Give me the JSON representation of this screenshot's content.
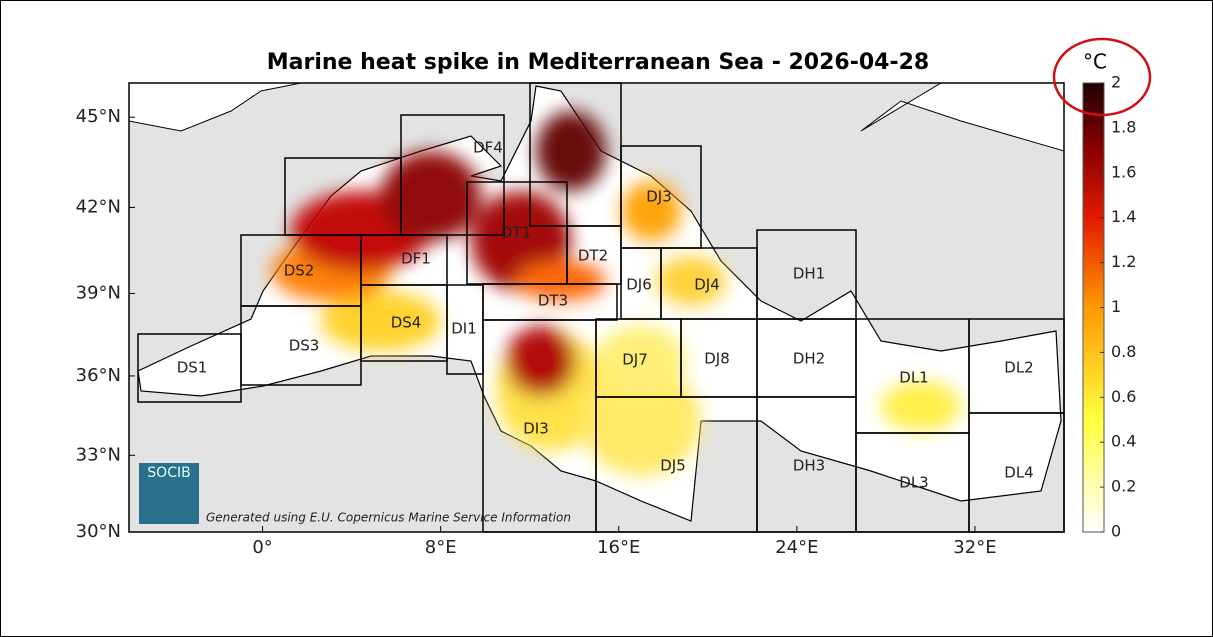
{
  "title": "Marine heat spike in Mediterranean Sea - 2026-04-28",
  "lat_ticks": [
    {
      "value": 45,
      "label": "45°N"
    },
    {
      "value": 42,
      "label": "42°N"
    },
    {
      "value": 39,
      "label": "39°N"
    },
    {
      "value": 36,
      "label": "36°N"
    },
    {
      "value": 33,
      "label": "33°N"
    },
    {
      "value": 30,
      "label": "30°N"
    }
  ],
  "lon_ticks": [
    {
      "value": 0,
      "label": "0°"
    },
    {
      "value": 8,
      "label": "8°E"
    },
    {
      "value": 16,
      "label": "16°E"
    },
    {
      "value": 24,
      "label": "24°E"
    },
    {
      "value": 32,
      "label": "32°E"
    }
  ],
  "regions": [
    "DS1",
    "DS3",
    "DS2",
    "DS4",
    "DF1",
    "DF4",
    "DT1",
    "DT2",
    "DT3",
    "DI1",
    "DJ3",
    "DJ6",
    "DJ4",
    "DJ7",
    "DJ8",
    "DH1",
    "DH2",
    "DL1",
    "DL2",
    "DI3",
    "DJ5",
    "DH3",
    "DL3",
    "DL4"
  ],
  "colorbar": {
    "unit": "°C",
    "ticks": [
      0,
      0.2,
      0.4,
      0.6,
      0.8,
      1,
      1.2,
      1.4,
      1.6,
      1.8,
      2
    ]
  },
  "logo": "SOCIB",
  "credit": "Generated using E.U. Copernicus Marine Service Information"
}
